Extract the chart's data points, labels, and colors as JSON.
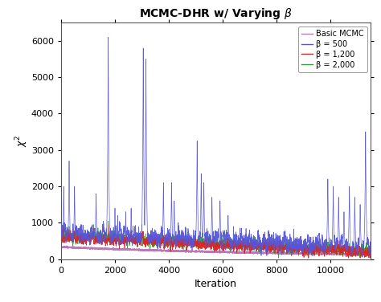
{
  "title": "MCMC-DHR w/ Varying $\\beta$",
  "xlabel": "Iteration",
  "ylabel": "$\\chi^2$",
  "xlim": [
    0,
    11500
  ],
  "ylim": [
    0,
    6500
  ],
  "xticks": [
    0,
    2000,
    4000,
    6000,
    8000,
    10000
  ],
  "yticks": [
    0,
    1000,
    2000,
    3000,
    4000,
    5000,
    6000
  ],
  "n_iter": 11500,
  "colors": {
    "basic_mcmc": "#bb77bb",
    "beta_500": "#5555dd",
    "beta_1200": "#dd2222",
    "beta_2000": "#22aa22"
  },
  "legend_labels": [
    "Basic MCMC",
    "β = 500",
    "β = 1,200",
    "β = 2,000"
  ],
  "seed": 42,
  "background_color": "#ffffff"
}
